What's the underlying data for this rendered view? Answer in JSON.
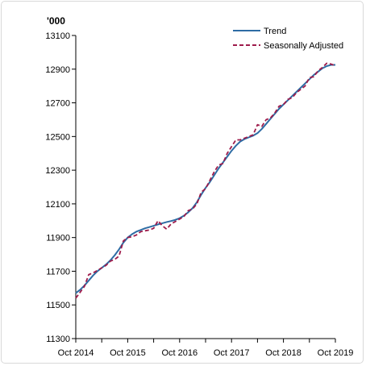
{
  "chart_data": {
    "type": "line",
    "unit_label": "'000",
    "x_tick_labels": [
      "Oct 2014",
      "Oct 2015",
      "Oct 2016",
      "Oct 2017",
      "Oct 2018",
      "Oct 2019"
    ],
    "ylim": [
      11300,
      13100
    ],
    "y_ticks": [
      11300,
      11500,
      11700,
      11900,
      12100,
      12300,
      12500,
      12700,
      12900,
      13100
    ],
    "legend_position": "top-right",
    "grid": false,
    "x_months": [
      "Oct 2014",
      "Nov 2014",
      "Dec 2014",
      "Jan 2015",
      "Feb 2015",
      "Mar 2015",
      "Apr 2015",
      "May 2015",
      "Jun 2015",
      "Jul 2015",
      "Aug 2015",
      "Sep 2015",
      "Oct 2015",
      "Nov 2015",
      "Dec 2015",
      "Jan 2016",
      "Feb 2016",
      "Mar 2016",
      "Apr 2016",
      "May 2016",
      "Jun 2016",
      "Jul 2016",
      "Aug 2016",
      "Sep 2016",
      "Oct 2016",
      "Nov 2016",
      "Dec 2016",
      "Jan 2017",
      "Feb 2017",
      "Mar 2017",
      "Apr 2017",
      "May 2017",
      "Jun 2017",
      "Jul 2017",
      "Aug 2017",
      "Sep 2017",
      "Oct 2017",
      "Nov 2017",
      "Dec 2017",
      "Jan 2018",
      "Feb 2018",
      "Mar 2018",
      "Apr 2018",
      "May 2018",
      "Jun 2018",
      "Jul 2018",
      "Aug 2018",
      "Sep 2018",
      "Oct 2018",
      "Nov 2018",
      "Dec 2018",
      "Jan 2019",
      "Feb 2019",
      "Mar 2019",
      "Apr 2019",
      "May 2019",
      "Jun 2019",
      "Jul 2019",
      "Aug 2019",
      "Sep 2019",
      "Oct 2019"
    ],
    "series": [
      {
        "name": "Trend",
        "color": "#2e6ca4",
        "dash": "solid",
        "values": [
          11570,
          11590,
          11615,
          11645,
          11675,
          11700,
          11720,
          11740,
          11765,
          11795,
          11830,
          11870,
          11900,
          11920,
          11935,
          11945,
          11955,
          11962,
          11970,
          11978,
          11985,
          11992,
          11998,
          12005,
          12015,
          12030,
          12050,
          12075,
          12110,
          12155,
          12195,
          12230,
          12270,
          12310,
          12345,
          12380,
          12415,
          12445,
          12470,
          12485,
          12495,
          12505,
          12520,
          12545,
          12575,
          12605,
          12635,
          12665,
          12690,
          12715,
          12740,
          12765,
          12790,
          12815,
          12840,
          12865,
          12885,
          12905,
          12918,
          12925,
          12925
        ]
      },
      {
        "name": "Seasonally Adjusted",
        "color": "#9e1b4b",
        "dash": "dashed",
        "values": [
          11540,
          11575,
          11610,
          11680,
          11690,
          11705,
          11720,
          11735,
          11760,
          11770,
          11790,
          11880,
          11900,
          11905,
          11915,
          11935,
          11940,
          11945,
          11955,
          12000,
          11970,
          11950,
          11980,
          11995,
          12010,
          12025,
          12060,
          12070,
          12100,
          12170,
          12190,
          12240,
          12290,
          12330,
          12340,
          12400,
          12440,
          12480,
          12480,
          12490,
          12500,
          12510,
          12570,
          12560,
          12600,
          12610,
          12640,
          12680,
          12690,
          12720,
          12730,
          12760,
          12780,
          12800,
          12850,
          12855,
          12890,
          12910,
          12935,
          12930,
          12920
        ]
      }
    ]
  }
}
